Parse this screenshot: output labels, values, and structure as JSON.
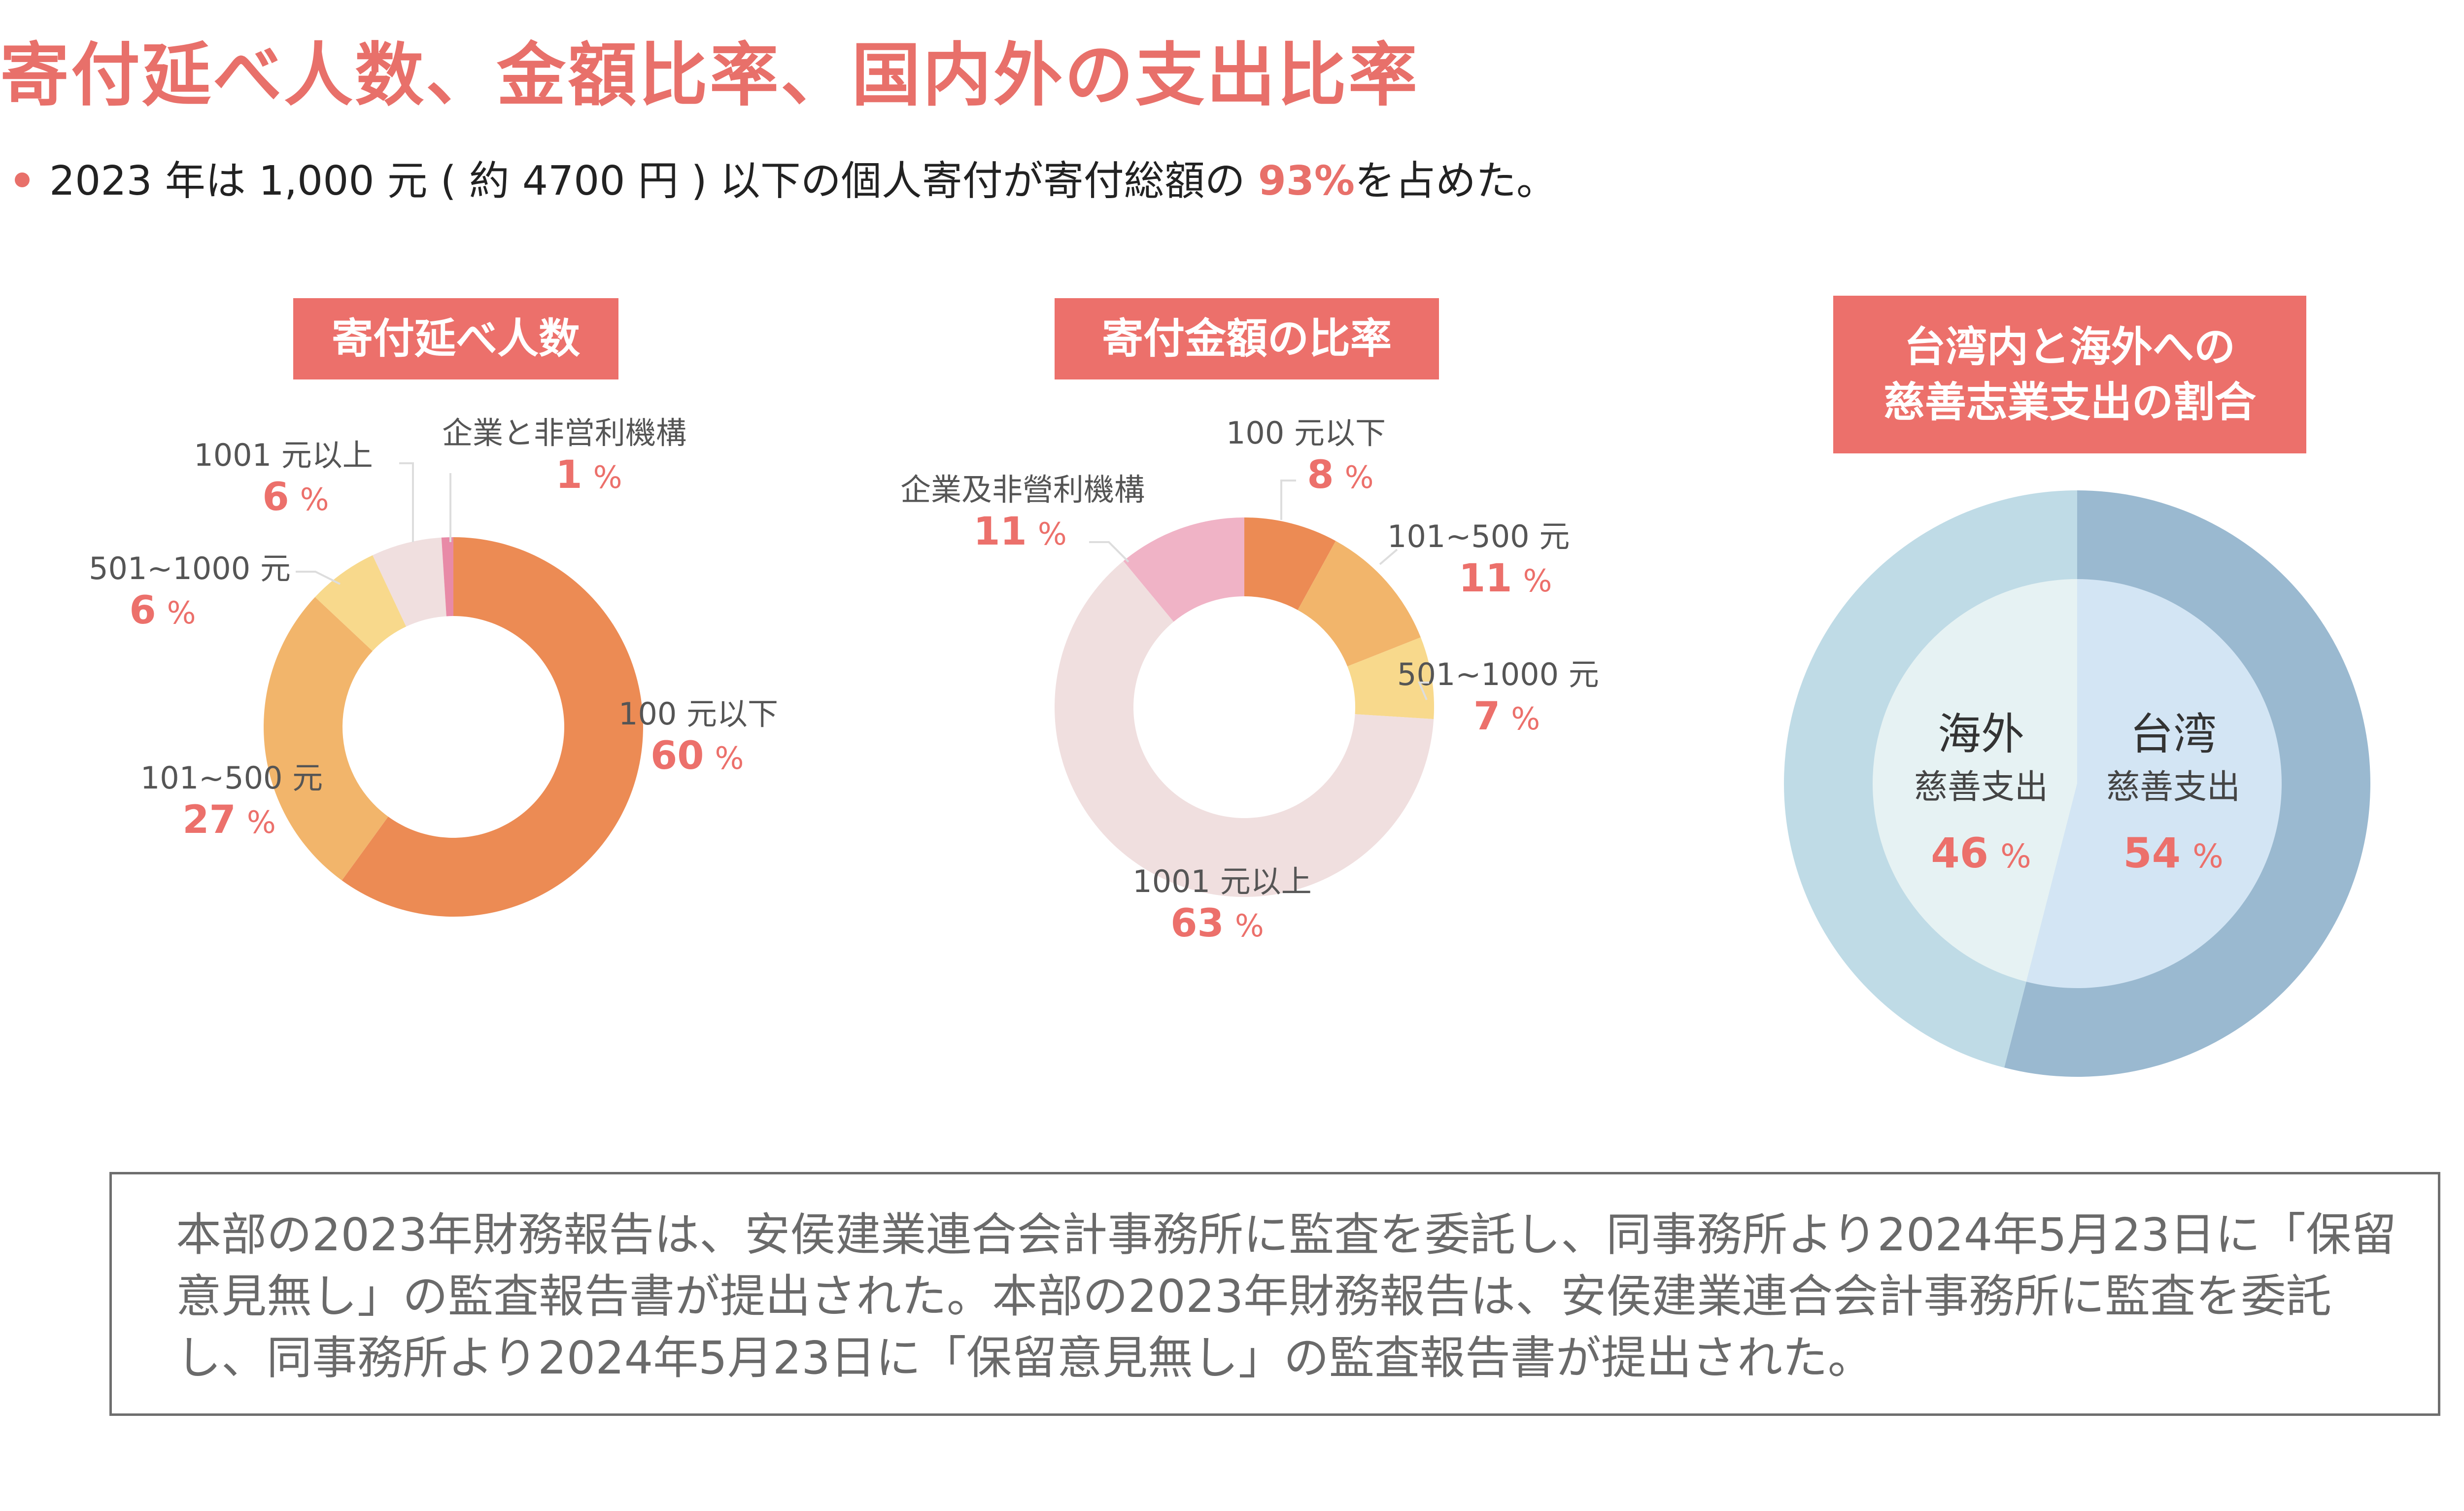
{
  "header": {
    "title": "寄付延べ人数、金額比率、国内外の支出比率",
    "subtitle_prefix": "2023 年は 1,000 元 ( 約 4700 円 ) 以下の個人寄付が寄付総額の ",
    "subtitle_highlight": "93%",
    "subtitle_suffix": "を占めた。"
  },
  "colors": {
    "accent": "#ec706b",
    "orange_dark": "#ec8b54",
    "orange": "#f2b56b",
    "yellow": "#f8d98c",
    "pale_pink": "#f0dfdf",
    "pink": "#e88aa7",
    "light_pink": "#f0b3c6",
    "blue_dark": "#9ab9d0",
    "blue_light": "#bfdbe6",
    "inner_right": "#d3e5f4",
    "inner_left": "#e6f2f3"
  },
  "chart_data": [
    {
      "type": "pie",
      "title": "寄付延べ人数",
      "slices": [
        {
          "label": "100 元以下",
          "value": 60,
          "pct": "60",
          "color": "#ec8b54"
        },
        {
          "label": "101~500 元",
          "value": 27,
          "pct": "27",
          "color": "#f2b56b"
        },
        {
          "label": "501~1000 元",
          "value": 6,
          "pct": "6",
          "color": "#f8d98c"
        },
        {
          "label": "1001 元以上",
          "value": 6,
          "pct": "6",
          "color": "#f0dfdf"
        },
        {
          "label": "企業と非営利機構",
          "value": 1,
          "pct": "1",
          "color": "#e88aa7"
        }
      ]
    },
    {
      "type": "pie",
      "title": "寄付金額の比率",
      "slices": [
        {
          "label": "100 元以下",
          "value": 8,
          "pct": "8",
          "color": "#ec8b54"
        },
        {
          "label": "101~500 元",
          "value": 11,
          "pct": "11",
          "color": "#f2b56b"
        },
        {
          "label": "501~1000 元",
          "value": 7,
          "pct": "7",
          "color": "#f8d98c"
        },
        {
          "label": "1001 元以上",
          "value": 63,
          "pct": "63",
          "color": "#f0dfdf"
        },
        {
          "label": "企業及非營利機構",
          "value": 11,
          "pct": "11",
          "color": "#f0b3c6"
        }
      ]
    },
    {
      "type": "pie",
      "title": "台湾内と海外への\n慈善志業支出の割合",
      "slices": [
        {
          "label": "台湾",
          "sublabel": "慈善支出",
          "value": 54,
          "pct": "54",
          "color": "#9ab9d0",
          "inner_color": "#d3e5f4"
        },
        {
          "label": "海外",
          "sublabel": "慈善支出",
          "value": 46,
          "pct": "46",
          "color": "#bfdbe6",
          "inner_color": "#e6f2f3"
        }
      ]
    }
  ],
  "note": {
    "text": "本部の2023年財務報告は、安侯建業連合会計事務所に監査を委託し、同事務所より2024年5月23日に「保留意見無し」の監査報告書が提出された。本部の2023年財務報告は、安侯建業連合会計事務所に監査を委託し、同事務所より2024年5月23日に「保留意見無し」の監査報告書が提出された。"
  }
}
